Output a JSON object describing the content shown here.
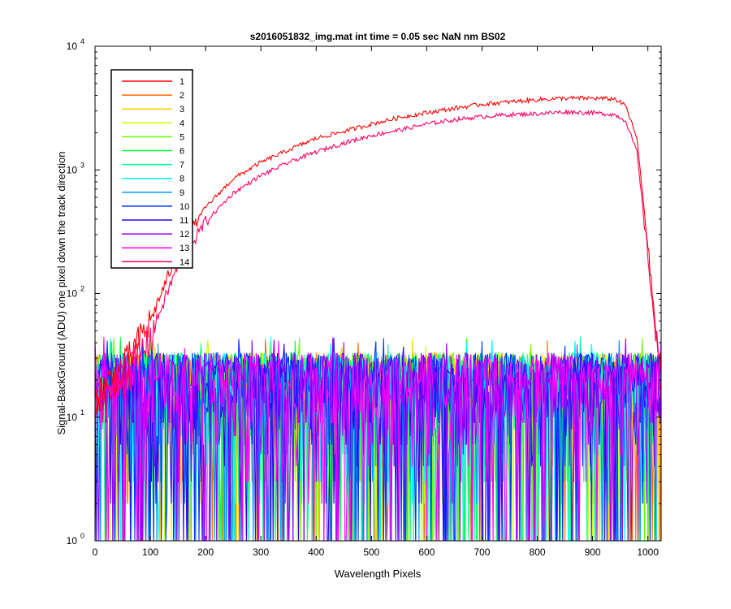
{
  "chart_data": {
    "type": "line",
    "title": "s2016051832_img.mat int time = 0.05 sec  NaN nm BS02",
    "xlabel": "Wavelength Pixels",
    "ylabel": "Signal-BackGround (ADU) one pixel down the track direction",
    "xlim": [
      0,
      1024
    ],
    "ylim": [
      1,
      10000
    ],
    "yscale": "log",
    "grid": false,
    "legend_location": "top-left",
    "x_ticks": [
      0,
      100,
      200,
      300,
      400,
      500,
      600,
      700,
      800,
      900,
      1000
    ],
    "x_tick_labels": [
      "0",
      "100",
      "200",
      "300",
      "400",
      "500",
      "600",
      "700",
      "800",
      "900",
      "1000"
    ],
    "y_ticks": [
      1,
      10,
      100,
      1000,
      10000
    ],
    "y_tick_labels": [
      {
        "base": "10",
        "exp": "0"
      },
      {
        "base": "10",
        "exp": "1"
      },
      {
        "base": "10",
        "exp": "2"
      },
      {
        "base": "10",
        "exp": "3"
      },
      {
        "base": "10",
        "exp": "4"
      }
    ],
    "series": [
      {
        "name": "1",
        "color": "#ff0000",
        "kind": "signal",
        "profile": {
          "x": [
            0,
            50,
            100,
            150,
            200,
            250,
            300,
            350,
            400,
            450,
            500,
            550,
            600,
            650,
            700,
            750,
            800,
            850,
            900,
            940,
            960,
            980,
            1000,
            1010,
            1020,
            1024
          ],
          "y": [
            15,
            25,
            60,
            220,
            500,
            850,
            1150,
            1450,
            1800,
            2050,
            2350,
            2650,
            2900,
            3150,
            3400,
            3550,
            3700,
            3800,
            3800,
            3750,
            3300,
            1800,
            250,
            80,
            30,
            20
          ]
        }
      },
      {
        "name": "2",
        "color": "#ff6600",
        "kind": "noise"
      },
      {
        "name": "3",
        "color": "#ffcc00",
        "kind": "noise"
      },
      {
        "name": "4",
        "color": "#ccff00",
        "kind": "noise"
      },
      {
        "name": "5",
        "color": "#66ff00",
        "kind": "noise"
      },
      {
        "name": "6",
        "color": "#00ff33",
        "kind": "noise"
      },
      {
        "name": "7",
        "color": "#00ff99",
        "kind": "noise"
      },
      {
        "name": "8",
        "color": "#00ffff",
        "kind": "noise"
      },
      {
        "name": "9",
        "color": "#0099ff",
        "kind": "noise"
      },
      {
        "name": "10",
        "color": "#0033ff",
        "kind": "noise"
      },
      {
        "name": "11",
        "color": "#3300ff",
        "kind": "noise"
      },
      {
        "name": "12",
        "color": "#9900ff",
        "kind": "noise"
      },
      {
        "name": "13",
        "color": "#ff00ff",
        "kind": "noise"
      },
      {
        "name": "14",
        "color": "#ff0066",
        "kind": "signal",
        "profile": {
          "x": [
            0,
            50,
            100,
            150,
            200,
            250,
            300,
            350,
            400,
            450,
            500,
            550,
            600,
            650,
            700,
            750,
            800,
            850,
            900,
            940,
            960,
            980,
            1000,
            1010,
            1020,
            1024
          ],
          "y": [
            12,
            20,
            45,
            170,
            380,
            650,
            900,
            1150,
            1400,
            1650,
            1900,
            2100,
            2350,
            2550,
            2700,
            2800,
            2850,
            2950,
            2900,
            2800,
            2500,
            1400,
            200,
            70,
            25,
            18
          ]
        }
      }
    ],
    "noise_level_range": [
      1,
      45
    ]
  }
}
